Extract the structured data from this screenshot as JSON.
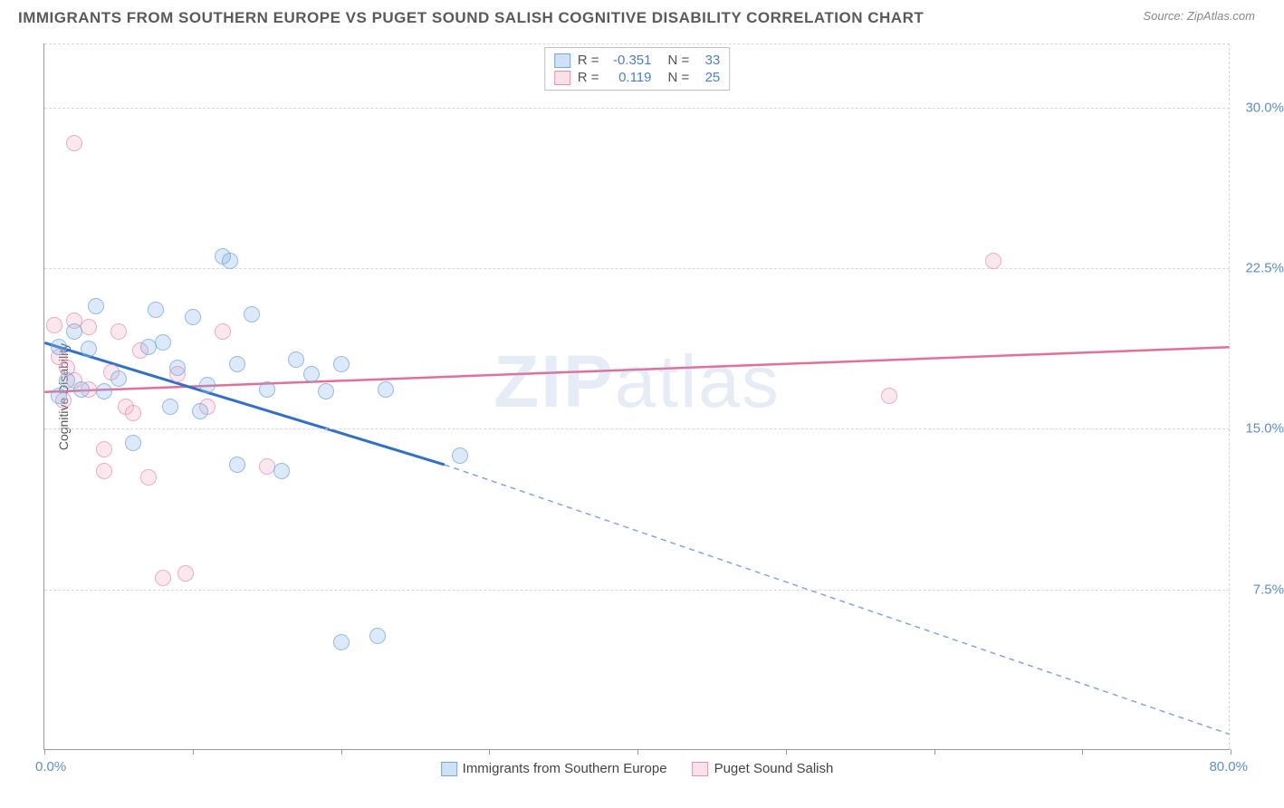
{
  "header": {
    "title": "IMMIGRANTS FROM SOUTHERN EUROPE VS PUGET SOUND SALISH COGNITIVE DISABILITY CORRELATION CHART",
    "source_prefix": "Source: ",
    "source": "ZipAtlas.com"
  },
  "chart": {
    "type": "scatter",
    "yaxis_title": "Cognitive Disability",
    "x_min": 0,
    "x_max": 80,
    "y_min": 0,
    "y_max": 33,
    "y_ticks": [
      7.5,
      15.0,
      22.5,
      30.0
    ],
    "y_tick_labels": [
      "7.5%",
      "15.0%",
      "22.5%",
      "30.0%"
    ],
    "x_ticks": [
      0,
      10,
      20,
      30,
      40,
      50,
      60,
      70,
      80
    ],
    "x_label_min": "0.0%",
    "x_label_max": "80.0%",
    "grid_color": "#d8d8d8",
    "axis_color": "#9a9a9a",
    "background": "#ffffff",
    "watermark": "ZIPatlas",
    "series": [
      {
        "name": "Immigrants from Southern Europe",
        "color_fill": "rgba(132,179,232,0.4)",
        "color_stroke": "#6fa8e0",
        "stats": {
          "R": "-0.351",
          "N": "33"
        },
        "trend": {
          "x1": 0,
          "y1": 19.0,
          "x2_solid": 27,
          "y2_solid": 13.3,
          "x2_dash": 80,
          "y2_dash": 0.7,
          "stroke_solid": "#2f6fd0",
          "stroke_dash": "#7ca8e0"
        },
        "points": [
          {
            "x": 1,
            "y": 18.8
          },
          {
            "x": 1.5,
            "y": 17.2
          },
          {
            "x": 1,
            "y": 16.5
          },
          {
            "x": 2,
            "y": 19.5
          },
          {
            "x": 2.5,
            "y": 16.8
          },
          {
            "x": 3,
            "y": 18.7
          },
          {
            "x": 3.5,
            "y": 20.7
          },
          {
            "x": 4,
            "y": 16.7
          },
          {
            "x": 5,
            "y": 17.3
          },
          {
            "x": 6,
            "y": 14.3
          },
          {
            "x": 7,
            "y": 18.8
          },
          {
            "x": 7.5,
            "y": 20.5
          },
          {
            "x": 8,
            "y": 19.0
          },
          {
            "x": 8.5,
            "y": 16.0
          },
          {
            "x": 9,
            "y": 17.8
          },
          {
            "x": 10,
            "y": 20.2
          },
          {
            "x": 10.5,
            "y": 15.8
          },
          {
            "x": 11,
            "y": 17.0
          },
          {
            "x": 12,
            "y": 23.0
          },
          {
            "x": 12.5,
            "y": 22.8
          },
          {
            "x": 13,
            "y": 18.0
          },
          {
            "x": 13,
            "y": 13.3
          },
          {
            "x": 14,
            "y": 20.3
          },
          {
            "x": 15,
            "y": 16.8
          },
          {
            "x": 16,
            "y": 13.0
          },
          {
            "x": 17,
            "y": 18.2
          },
          {
            "x": 18,
            "y": 17.5
          },
          {
            "x": 19,
            "y": 16.7
          },
          {
            "x": 20,
            "y": 18.0
          },
          {
            "x": 23,
            "y": 16.8
          },
          {
            "x": 20,
            "y": 5.0
          },
          {
            "x": 22.5,
            "y": 5.3
          },
          {
            "x": 28,
            "y": 13.7
          }
        ]
      },
      {
        "name": "Puget Sound Salish",
        "color_fill": "rgba(240,168,192,0.35)",
        "color_stroke": "#e890b0",
        "stats": {
          "R": "0.119",
          "N": "25"
        },
        "trend": {
          "x1": 0,
          "y1": 16.7,
          "x2_solid": 80,
          "y2_solid": 18.8,
          "stroke_solid": "#e56d9a"
        },
        "points": [
          {
            "x": 0.7,
            "y": 19.8
          },
          {
            "x": 1,
            "y": 18.3
          },
          {
            "x": 1.3,
            "y": 16.3
          },
          {
            "x": 1.5,
            "y": 17.8
          },
          {
            "x": 2,
            "y": 20.0
          },
          {
            "x": 2,
            "y": 17.2
          },
          {
            "x": 2,
            "y": 28.3
          },
          {
            "x": 3,
            "y": 16.8
          },
          {
            "x": 3,
            "y": 19.7
          },
          {
            "x": 4,
            "y": 14.0
          },
          {
            "x": 4.5,
            "y": 17.6
          },
          {
            "x": 5,
            "y": 19.5
          },
          {
            "x": 5.5,
            "y": 16.0
          },
          {
            "x": 4,
            "y": 13.0
          },
          {
            "x": 6,
            "y": 15.7
          },
          {
            "x": 6.5,
            "y": 18.6
          },
          {
            "x": 7,
            "y": 12.7
          },
          {
            "x": 8,
            "y": 8.0
          },
          {
            "x": 9,
            "y": 17.5
          },
          {
            "x": 9.5,
            "y": 8.2
          },
          {
            "x": 11,
            "y": 16.0
          },
          {
            "x": 12,
            "y": 19.5
          },
          {
            "x": 15,
            "y": 13.2
          },
          {
            "x": 57,
            "y": 16.5
          },
          {
            "x": 64,
            "y": 22.8
          }
        ]
      }
    ],
    "legend_stats_labels": {
      "R": "R =",
      "N": "N ="
    },
    "bottom_legend": [
      {
        "label": "Immigrants from Southern Europe",
        "swatch": "blue"
      },
      {
        "label": "Puget Sound Salish",
        "swatch": "pink"
      }
    ]
  }
}
